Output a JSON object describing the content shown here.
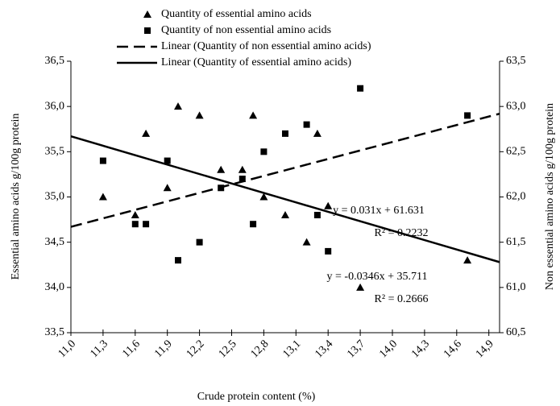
{
  "chart_data": {
    "type": "scatter",
    "x_label": "Crude protein content (%)",
    "y_label": "Essential amino acids g/100g protein",
    "y2_label": "Non essential amino acids g/100g protein",
    "xlim": [
      11.0,
      15.0
    ],
    "xticks": [
      {
        "value": 11.0,
        "label": "11,0"
      },
      {
        "value": 11.3,
        "label": "11,3"
      },
      {
        "value": 11.6,
        "label": "11,6"
      },
      {
        "value": 11.9,
        "label": "11,9"
      },
      {
        "value": 12.2,
        "label": "12,2"
      },
      {
        "value": 12.5,
        "label": "12,5"
      },
      {
        "value": 12.8,
        "label": "12,8"
      },
      {
        "value": 13.1,
        "label": "13,1"
      },
      {
        "value": 13.4,
        "label": "13,4"
      },
      {
        "value": 13.7,
        "label": "13,7"
      },
      {
        "value": 14.0,
        "label": "14,0"
      },
      {
        "value": 14.3,
        "label": "14,3"
      },
      {
        "value": 14.6,
        "label": "14,6"
      },
      {
        "value": 14.9,
        "label": "14,9"
      }
    ],
    "ylim": [
      33.5,
      36.5
    ],
    "yticks": [
      {
        "value": 33.5,
        "label": "33,5"
      },
      {
        "value": 34.0,
        "label": "34,0"
      },
      {
        "value": 34.5,
        "label": "34,5"
      },
      {
        "value": 35.0,
        "label": "35,0"
      },
      {
        "value": 35.5,
        "label": "35,5"
      },
      {
        "value": 36.0,
        "label": "36,0"
      },
      {
        "value": 36.5,
        "label": "36,5"
      }
    ],
    "y2lim": [
      60.5,
      63.5
    ],
    "y2ticks": [
      {
        "value": 60.5,
        "label": "60,5"
      },
      {
        "value": 61.0,
        "label": "61,0"
      },
      {
        "value": 61.5,
        "label": "61,5"
      },
      {
        "value": 62.0,
        "label": "62,0"
      },
      {
        "value": 62.5,
        "label": "62,5"
      },
      {
        "value": 63.0,
        "label": "63,0"
      },
      {
        "value": 63.5,
        "label": "63,5"
      }
    ],
    "series": [
      {
        "name": "Quantity of essential amino acids",
        "mark": "triangle",
        "color": "#000000",
        "axis": "y",
        "x": [
          11.3,
          11.6,
          11.7,
          11.9,
          12.0,
          12.2,
          12.4,
          12.6,
          12.7,
          12.8,
          13.0,
          13.2,
          13.3,
          13.4,
          13.7,
          14.7
        ],
        "values": [
          35.0,
          34.8,
          35.7,
          35.1,
          36.0,
          35.9,
          35.3,
          35.3,
          35.9,
          35.0,
          34.8,
          34.5,
          35.7,
          34.9,
          34.0,
          34.3
        ]
      },
      {
        "name": "Quantity of non essential amino acids",
        "mark": "square",
        "color": "#000000",
        "axis": "y2",
        "x": [
          11.3,
          11.6,
          11.7,
          11.9,
          12.0,
          12.2,
          12.4,
          12.6,
          12.7,
          12.8,
          13.0,
          13.2,
          13.3,
          13.4,
          13.7,
          14.7
        ],
        "values": [
          62.4,
          61.7,
          61.7,
          62.4,
          61.3,
          61.5,
          62.1,
          62.2,
          61.7,
          62.5,
          62.7,
          62.8,
          61.8,
          61.4,
          63.2,
          62.9
        ]
      },
      {
        "name": "Linear (Quantity of non essential amino acids)",
        "mark": "dashed",
        "color": "#000000",
        "axis": "y2",
        "x": [
          11.0,
          15.0
        ],
        "values": [
          61.67,
          62.92
        ]
      },
      {
        "name": "Linear (Quantity of essential amino acids)",
        "mark": "solid",
        "color": "#000000",
        "axis": "y",
        "x": [
          11.0,
          15.0
        ],
        "values": [
          35.67,
          34.28
        ]
      }
    ],
    "annotations": [
      "y = 0.031x + 61.631",
      "R² = 0.2232",
      "y = -0.0346x + 35.711",
      "R² = 0.2666"
    ]
  }
}
